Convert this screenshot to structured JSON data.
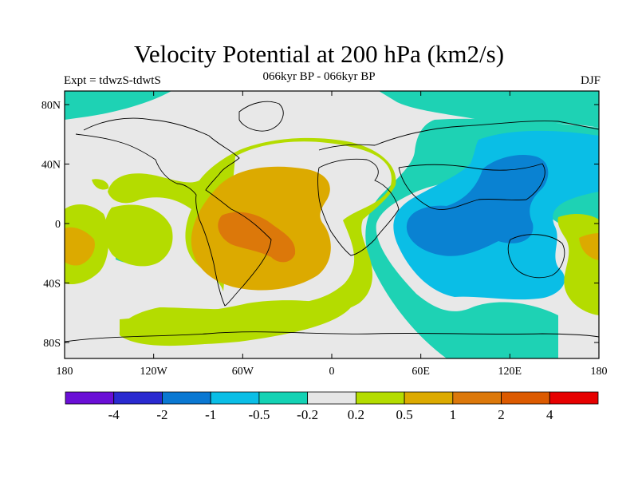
{
  "title": "Velocity Potential at 200 hPa (km2/s)",
  "subtitle": "066kyr BP - 066kyr BP",
  "experiment": "Expt = tdwzS-tdwtS",
  "season": "DJF",
  "map": {
    "lat_ticks": [
      "80N",
      "40N",
      "0",
      "40S",
      "80S"
    ],
    "lon_ticks": [
      "180",
      "120W",
      "60W",
      "0",
      "60E",
      "120E",
      "180"
    ],
    "background_color": "#e8e8e8"
  },
  "colorbar": {
    "colors": [
      "#6a0fd6",
      "#2a2ad0",
      "#0a78d2",
      "#0abee6",
      "#14d2b4",
      "#e6e6e6",
      "#b4dc00",
      "#dcaa00",
      "#dc780a",
      "#dc5a00",
      "#e60000"
    ],
    "labels": [
      "-4",
      "-2",
      "-1",
      "-0.5",
      "-0.2",
      "0.2",
      "0.5",
      "1",
      "2",
      "4"
    ]
  }
}
